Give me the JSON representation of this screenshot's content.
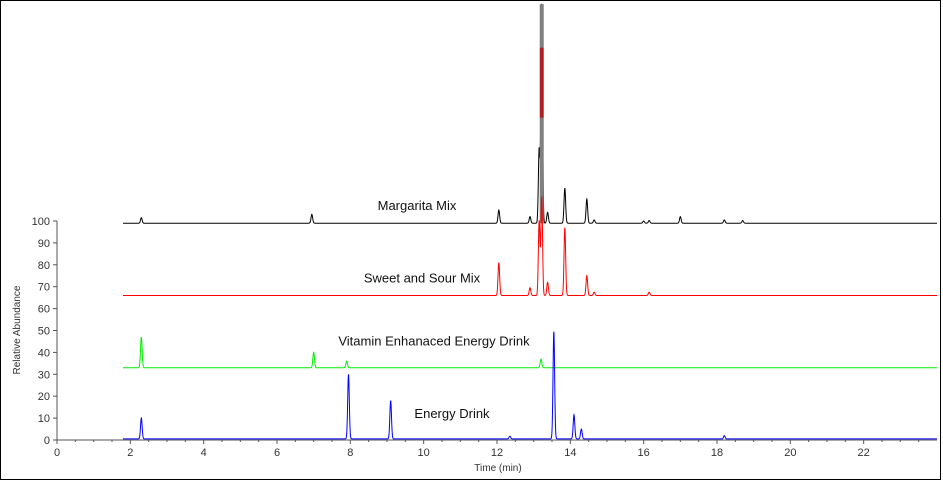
{
  "chart_data": {
    "type": "line",
    "xlabel": "Time (min)",
    "ylabel": "Relative Abundance",
    "xlim": [
      0,
      24
    ],
    "ylim": [
      0,
      100
    ],
    "x_ticks": [
      0,
      2,
      4,
      6,
      8,
      10,
      12,
      14,
      16,
      18,
      20,
      22
    ],
    "y_ticks": [
      0,
      10,
      20,
      30,
      40,
      50,
      60,
      70,
      80,
      90,
      100
    ],
    "trace_start_time": 1.8,
    "series": [
      {
        "name": "Margarita Mix",
        "color": "#000000",
        "highlight_colors": [
          "#808080",
          "#b02020"
        ],
        "baseline": 99,
        "peaks": [
          {
            "t": 2.3,
            "h": 2.5
          },
          {
            "t": 6.95,
            "h": 4
          },
          {
            "t": 12.05,
            "h": 6
          },
          {
            "t": 12.9,
            "h": 3
          },
          {
            "t": 13.15,
            "h": 34
          },
          {
            "t": 13.22,
            "h": 100
          },
          {
            "t": 13.38,
            "h": 5
          },
          {
            "t": 13.85,
            "h": 16
          },
          {
            "t": 14.45,
            "h": 11
          },
          {
            "t": 14.65,
            "h": 1.5
          },
          {
            "t": 16.0,
            "h": 1
          },
          {
            "t": 16.15,
            "h": 1.2
          },
          {
            "t": 17.0,
            "h": 3
          },
          {
            "t": 18.2,
            "h": 1.5
          },
          {
            "t": 18.7,
            "h": 1.2
          }
        ]
      },
      {
        "name": "Sweet and Sour Mix",
        "color": "#ff0000",
        "baseline": 66,
        "peaks": [
          {
            "t": 12.05,
            "h": 15
          },
          {
            "t": 12.9,
            "h": 3.5
          },
          {
            "t": 13.15,
            "h": 34
          },
          {
            "t": 13.22,
            "h": 45
          },
          {
            "t": 13.38,
            "h": 6
          },
          {
            "t": 13.85,
            "h": 31
          },
          {
            "t": 14.45,
            "h": 9
          },
          {
            "t": 14.65,
            "h": 1.5
          },
          {
            "t": 16.15,
            "h": 1.5
          }
        ]
      },
      {
        "name": "Vitamin Enhanaced Energy Drink",
        "color": "#00ee00",
        "baseline": 33,
        "peaks": [
          {
            "t": 2.3,
            "h": 14
          },
          {
            "t": 7.0,
            "h": 7
          },
          {
            "t": 7.9,
            "h": 3
          },
          {
            "t": 13.2,
            "h": 4
          }
        ]
      },
      {
        "name": "Energy Drink",
        "color": "#0000ff",
        "baseline": 0.5,
        "peaks": [
          {
            "t": 2.3,
            "h": 9.5
          },
          {
            "t": 7.95,
            "h": 29.5
          },
          {
            "t": 9.1,
            "h": 17.5
          },
          {
            "t": 12.35,
            "h": 1.2
          },
          {
            "t": 13.55,
            "h": 49
          },
          {
            "t": 14.1,
            "h": 11
          },
          {
            "t": 14.3,
            "h": 4.5
          },
          {
            "t": 18.2,
            "h": 1.5
          }
        ]
      }
    ]
  }
}
